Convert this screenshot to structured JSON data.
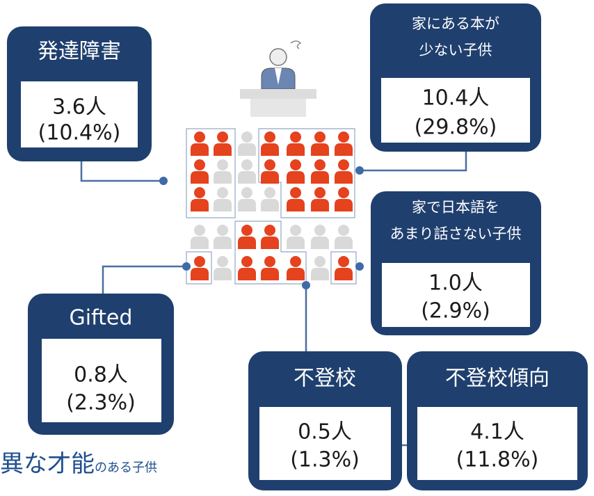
{
  "boxes": [
    {
      "title": [
        "発達障害"
      ],
      "count": "3.6人",
      "percent": "(10.4%)"
    },
    {
      "title": [
        "家にある本が",
        "少ない子供"
      ],
      "count": "10.4人",
      "percent": "(29.8%)"
    },
    {
      "title": [
        "家で日本語を",
        "あまり話さない子供"
      ],
      "count": "1.0人",
      "percent": "(2.9%)"
    },
    {
      "title": [
        "Gifted"
      ],
      "count": "0.8人",
      "percent": "(2.3%)"
    },
    {
      "title": [
        "不登校"
      ],
      "count": "0.5人",
      "percent": "(1.3%)"
    },
    {
      "title": [
        "不登校傾向"
      ],
      "count": "4.1人",
      "percent": "(11.8%)"
    }
  ],
  "caption": {
    "main": "異な才能",
    "sub": "のある子供"
  }
}
